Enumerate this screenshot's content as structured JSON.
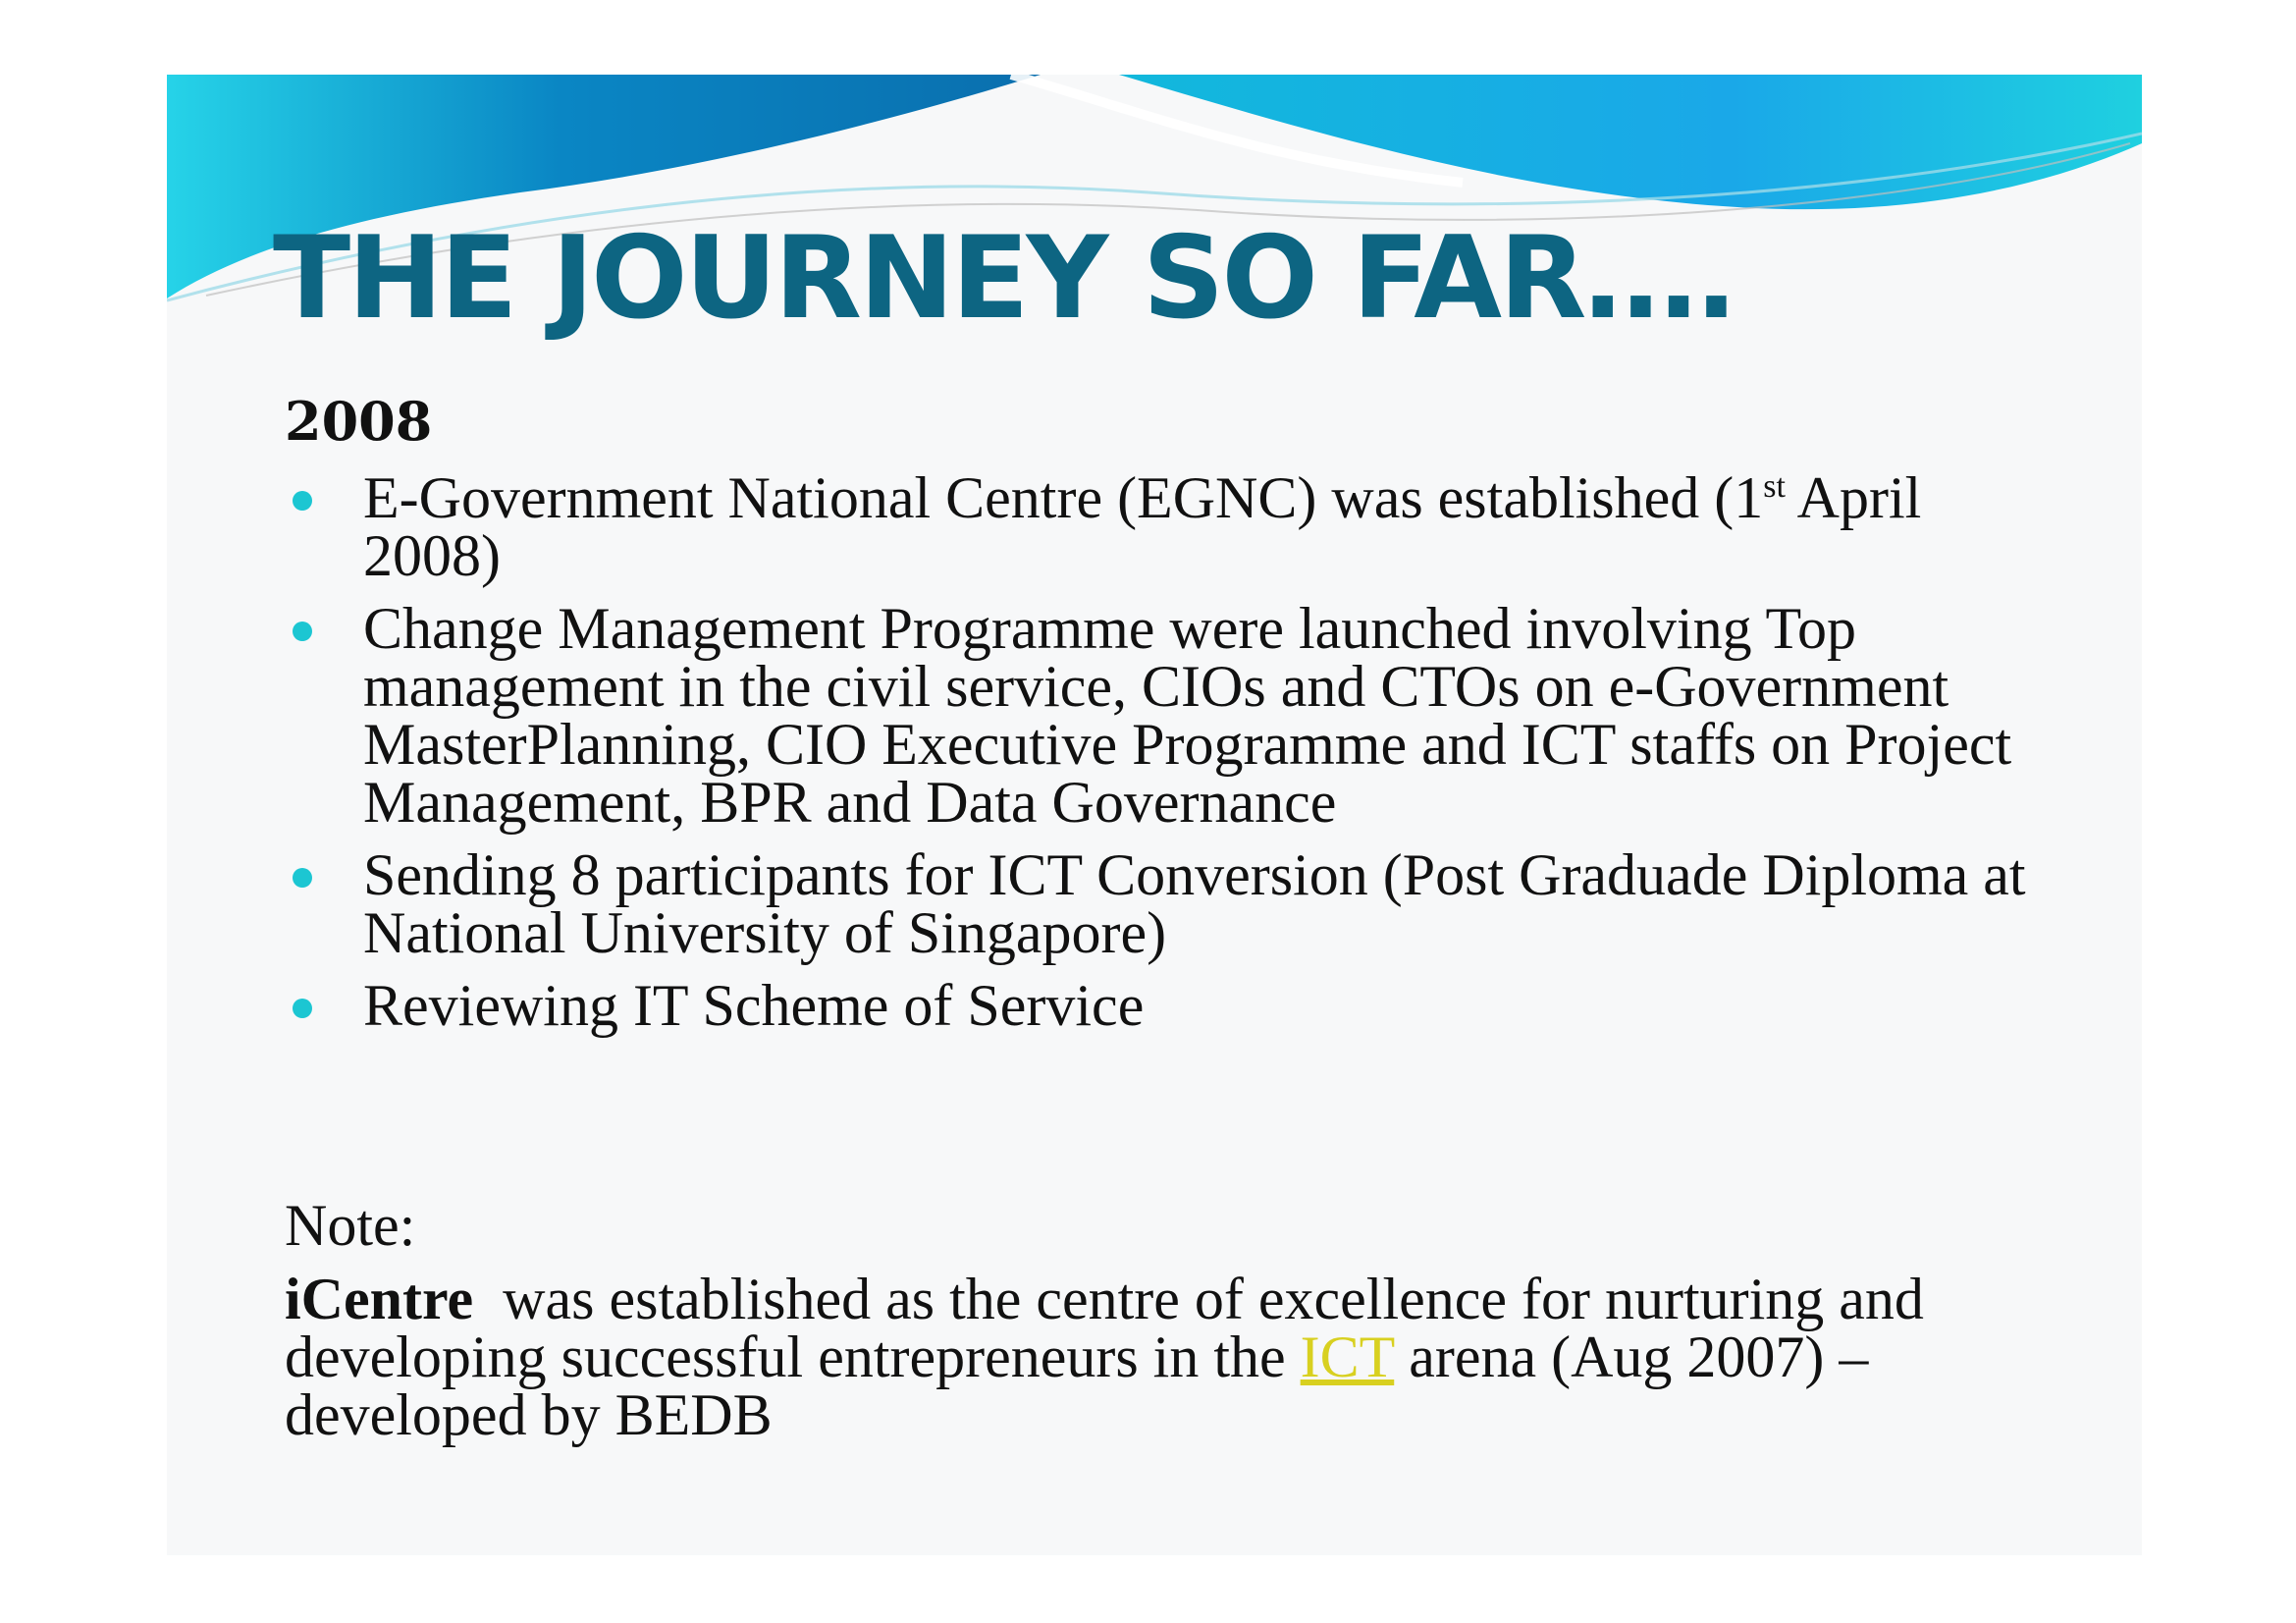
{
  "slide": {
    "title": "THE JOURNEY SO FAR….",
    "year": "2008",
    "bullets": [
      {
        "before_sup": "E-Government National Centre (EGNC) was established (1",
        "sup": "st",
        "after_sup": " April 2008)"
      },
      {
        "text": "Change Management Programme were launched involving Top management in the civil service, CIOs and CTOs on e-Government MasterPlanning, CIO Executive Programme and ICT staffs on Project Management, BPR and Data Governance"
      },
      {
        "text": "Sending 8 participants for ICT Conversion (Post Graduade Diploma at National University of Singapore)"
      },
      {
        "text": "Reviewing IT Scheme of Service"
      }
    ],
    "note": {
      "heading": "Note:",
      "bold_term": "iCentre",
      "text_before_link": "  was established as the centre of excellence for nurturing and developing successful entrepreneurs in the ",
      "link_text": "ICT",
      "text_after_link": " arena (Aug 2007) – developed by BEDB"
    }
  },
  "colors": {
    "title": "#0d6582",
    "bullet": "#1cc6d2",
    "link": "#d8d020",
    "banner_dark": "#0a7fb8",
    "banner_light": "#1fd0e0"
  }
}
